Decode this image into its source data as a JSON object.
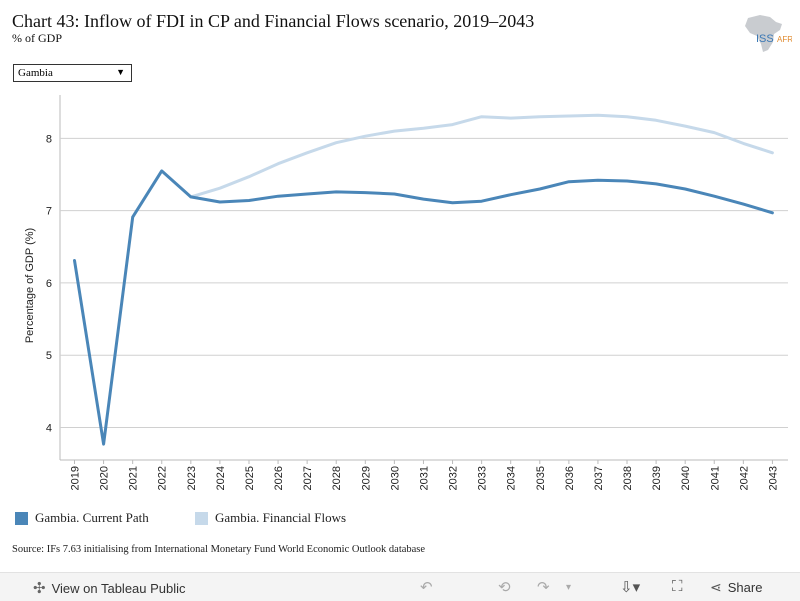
{
  "header": {
    "title": "Chart 43: Inflow of FDI in CP and Financial Flows scenario, 2019–2043",
    "subtitle": "% of GDP",
    "logo_text": "ISS"
  },
  "filter": {
    "selected": "Gambia"
  },
  "chart_data": {
    "type": "line",
    "title": "Chart 43: Inflow of FDI in CP and Financial Flows scenario, 2019–2043",
    "ylabel": "Percentage of GDP (%)",
    "xlabel": "",
    "ylim": [
      3.55,
      8.6
    ],
    "yticks": [
      4,
      5,
      6,
      7,
      8
    ],
    "x": [
      "2019",
      "2020",
      "2021",
      "2022",
      "2023",
      "2024",
      "2025",
      "2026",
      "2027",
      "2028",
      "2029",
      "2030",
      "2031",
      "2032",
      "2033",
      "2034",
      "2035",
      "2036",
      "2037",
      "2038",
      "2039",
      "2040",
      "2041",
      "2042",
      "2043"
    ],
    "grid": true,
    "legend_position": "bottom",
    "series": [
      {
        "name": "Gambia. Current Path",
        "color": "#4a86b8",
        "values": [
          6.31,
          3.77,
          6.91,
          7.55,
          7.19,
          7.12,
          7.14,
          7.2,
          7.23,
          7.26,
          7.25,
          7.23,
          7.16,
          7.11,
          7.13,
          7.22,
          7.3,
          7.4,
          7.42,
          7.41,
          7.37,
          7.3,
          7.2,
          7.09,
          6.97
        ]
      },
      {
        "name": "Gambia. Financial Flows",
        "color": "#c6d9ea",
        "values": [
          null,
          null,
          null,
          null,
          7.19,
          7.31,
          7.47,
          7.65,
          7.8,
          7.94,
          8.03,
          8.1,
          8.14,
          8.19,
          8.3,
          8.28,
          8.3,
          8.31,
          8.32,
          8.3,
          8.25,
          8.17,
          8.08,
          7.93,
          7.8
        ]
      }
    ]
  },
  "legend": [
    {
      "label": "Gambia. Current Path",
      "color": "#4a86b8"
    },
    {
      "label": "Gambia. Financial Flows",
      "color": "#c6d9ea"
    }
  ],
  "source": "Source: IFs 7.63 initialising from International Monetary Fund World Economic Outlook database",
  "footer": {
    "view_label": "View on Tableau Public",
    "share_label": "Share"
  }
}
